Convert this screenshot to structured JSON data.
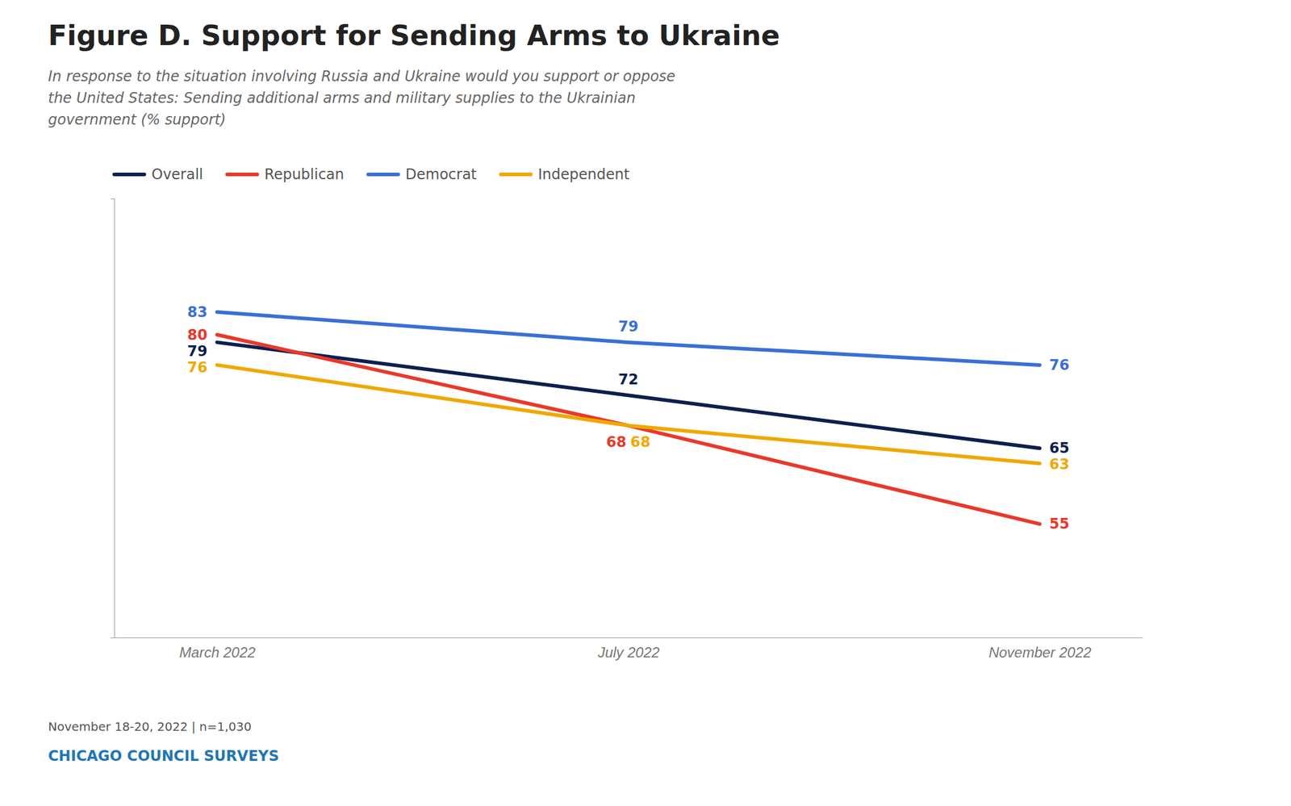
{
  "chart_data": {
    "type": "line",
    "title": "Figure D. Support for Sending Arms to Ukraine",
    "subtitle": "In response to the situation involving Russia and Ukraine would you support or oppose\nthe United States: Sending additional arms and military supplies to the Ukrainian\ngovernment (% support)",
    "annotations": [
      "November 18-20, 2022 | n=1,030",
      "CHICAGO COUNCIL SURVEYS"
    ],
    "categories": [
      "March 2022",
      "July 2022",
      "November 2022"
    ],
    "series": [
      {
        "name": "Overall",
        "color": "#0d1f4e",
        "values": [
          79,
          72,
          65
        ]
      },
      {
        "name": "Republican",
        "color": "#e8392a",
        "values": [
          80,
          68,
          55
        ]
      },
      {
        "name": "Democrat",
        "color": "#3b6fd4",
        "values": [
          83,
          79,
          76
        ]
      },
      {
        "name": "Independent",
        "color": "#f0a800",
        "values": [
          76,
          68,
          63
        ]
      }
    ],
    "ylim": [
      40,
      98
    ],
    "yticks": [],
    "tick_labels": "x",
    "data_labels": true,
    "legend": "upper left"
  }
}
